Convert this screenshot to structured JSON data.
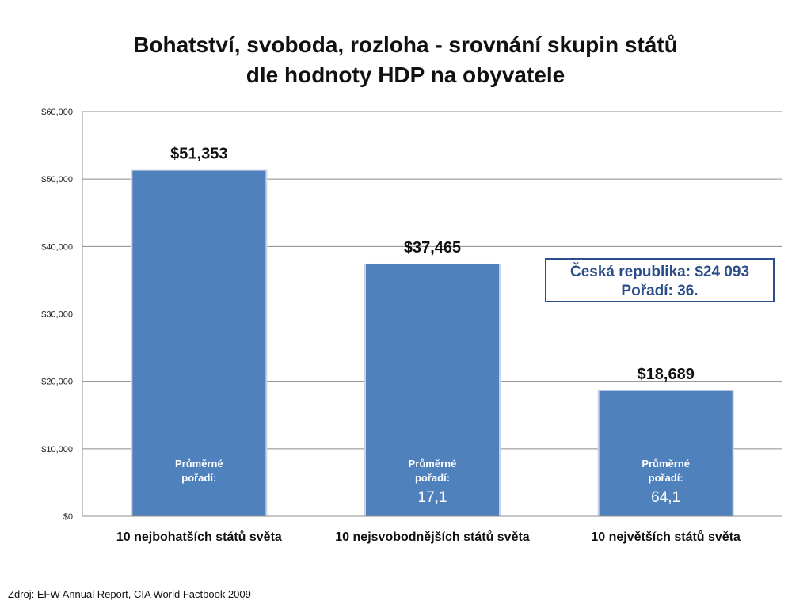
{
  "title_line1": "Bohatství, svoboda,  rozloha - srovnání skupin států",
  "title_line2": "dle hodnoty HDP na obyvatele",
  "callout": {
    "line1": "Česká republika: $24 093",
    "line2": "Pořadí: 36."
  },
  "source": "Zdroj: EFW Annual Report, CIA World Factbook 2009",
  "chart_data": {
    "type": "bar",
    "categories": [
      "10 nejbohatších států světa",
      "10 nejsvobodnějších států světa",
      "10 největších států světa"
    ],
    "values": [
      51353,
      37465,
      18689
    ],
    "value_labels": [
      "$51,353",
      "$37,465",
      "$18,689"
    ],
    "ylim": [
      0,
      60000
    ],
    "yticks": [
      0,
      10000,
      20000,
      30000,
      40000,
      50000,
      60000
    ],
    "ytick_labels": [
      "$0",
      "$10,000",
      "$20,000",
      "$30,000",
      "$40,000",
      "$50,000",
      "$60,000"
    ],
    "grid": true,
    "bar_color": "#4f81bd",
    "in_bar_label": "Průměrné pořadí:",
    "in_bar_label_line1": "Průměrné",
    "in_bar_label_line2": "pořadí:",
    "in_bar_values": [
      "",
      "17,1",
      "64,1"
    ]
  }
}
